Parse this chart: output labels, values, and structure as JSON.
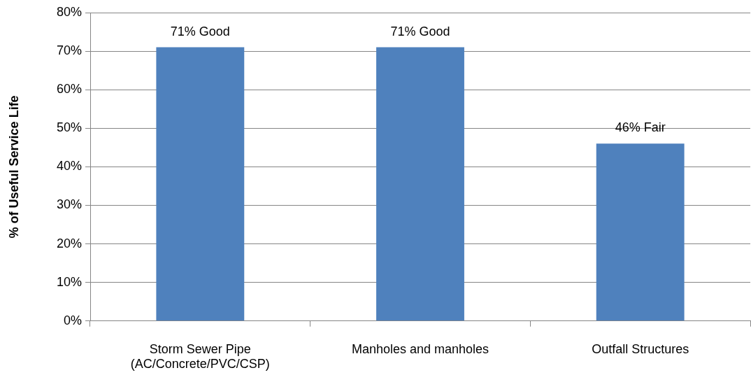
{
  "chart_data": {
    "type": "bar",
    "ylabel": "% of Useful Service Life",
    "categories": [
      "Storm Sewer Pipe (AC/Concrete/PVC/CSP)",
      "Manholes and manholes",
      "Outfall Structures"
    ],
    "values": [
      71,
      71,
      46
    ],
    "color": "#4f81bd",
    "value_labels": [
      "71% Good",
      "71% Good",
      "46% Fair"
    ],
    "ylim": [
      0,
      80
    ],
    "yticks": [
      {
        "value": 0,
        "label": "0%"
      },
      {
        "value": 10,
        "label": "10%"
      },
      {
        "value": 20,
        "label": "20%"
      },
      {
        "value": 30,
        "label": "30%"
      },
      {
        "value": 40,
        "label": "40%"
      },
      {
        "value": 50,
        "label": "50%"
      },
      {
        "value": 60,
        "label": "60%"
      },
      {
        "value": 70,
        "label": "70%"
      },
      {
        "value": 80,
        "label": "80%"
      }
    ],
    "grid": "y"
  }
}
